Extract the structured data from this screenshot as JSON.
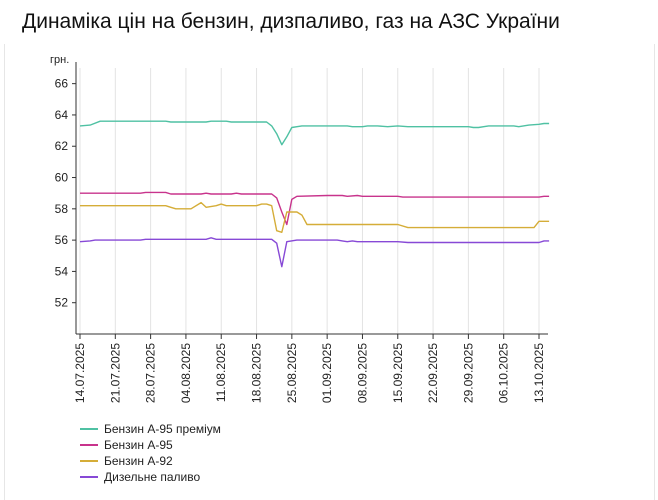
{
  "title": "Динаміка цін на бензин, дизпаливо, газ на АЗС України",
  "chart_data": {
    "type": "line",
    "ylabel": "грн.",
    "ylim": [
      50,
      67
    ],
    "yticks": [
      52,
      54,
      56,
      58,
      60,
      62,
      64,
      66
    ],
    "xticks": [
      "14.07.2025",
      "21.07.2025",
      "28.07.2025",
      "04.08.2025",
      "11.08.2025",
      "18.08.2025",
      "25.08.2025",
      "01.09.2025",
      "08.09.2025",
      "15.09.2025",
      "22.09.2025",
      "29.09.2025",
      "06.10.2025",
      "13.10.2025"
    ],
    "grid": "vertical",
    "legend_position": "bottom-left",
    "series": [
      {
        "name": "Бензин А-95 преміум",
        "color": "#4fc1a3",
        "points": [
          [
            "14.07.2025",
            63.3
          ],
          [
            "16.07.2025",
            63.35
          ],
          [
            "18.07.2025",
            63.6
          ],
          [
            "22.07.2025",
            63.6
          ],
          [
            "26.07.2025",
            63.6
          ],
          [
            "31.07.2025",
            63.6
          ],
          [
            "01.08.2025",
            63.55
          ],
          [
            "08.08.2025",
            63.55
          ],
          [
            "09.08.2025",
            63.6
          ],
          [
            "12.08.2025",
            63.6
          ],
          [
            "13.08.2025",
            63.55
          ],
          [
            "19.08.2025",
            63.55
          ],
          [
            "20.08.2025",
            63.55
          ],
          [
            "21.08.2025",
            63.3
          ],
          [
            "22.08.2025",
            62.8
          ],
          [
            "23.08.2025",
            62.1
          ],
          [
            "24.08.2025",
            62.6
          ],
          [
            "25.08.2025",
            63.2
          ],
          [
            "27.08.2025",
            63.3
          ],
          [
            "05.09.2025",
            63.3
          ],
          [
            "06.09.2025",
            63.25
          ],
          [
            "08.09.2025",
            63.25
          ],
          [
            "09.09.2025",
            63.3
          ],
          [
            "11.09.2025",
            63.3
          ],
          [
            "13.09.2025",
            63.25
          ],
          [
            "15.09.2025",
            63.3
          ],
          [
            "17.09.2025",
            63.25
          ],
          [
            "29.09.2025",
            63.25
          ],
          [
            "30.09.2025",
            63.2
          ],
          [
            "01.10.2025",
            63.2
          ],
          [
            "03.10.2025",
            63.3
          ],
          [
            "06.10.2025",
            63.3
          ],
          [
            "08.10.2025",
            63.3
          ],
          [
            "09.10.2025",
            63.25
          ],
          [
            "11.10.2025",
            63.35
          ],
          [
            "13.10.2025",
            63.4
          ],
          [
            "14.10.2025",
            63.45
          ],
          [
            "15.10.2025",
            63.45
          ]
        ]
      },
      {
        "name": "Бензин А-95",
        "color": "#c8338c",
        "points": [
          [
            "14.07.2025",
            59.0
          ],
          [
            "26.07.2025",
            59.0
          ],
          [
            "27.07.2025",
            59.05
          ],
          [
            "31.07.2025",
            59.05
          ],
          [
            "01.08.2025",
            58.95
          ],
          [
            "07.08.2025",
            58.95
          ],
          [
            "08.08.2025",
            59.0
          ],
          [
            "09.08.2025",
            58.95
          ],
          [
            "13.08.2025",
            58.95
          ],
          [
            "14.08.2025",
            59.0
          ],
          [
            "15.08.2025",
            58.95
          ],
          [
            "21.08.2025",
            58.95
          ],
          [
            "22.08.2025",
            58.7
          ],
          [
            "23.08.2025",
            57.8
          ],
          [
            "24.08.2025",
            57.0
          ],
          [
            "25.08.2025",
            58.6
          ],
          [
            "26.08.2025",
            58.8
          ],
          [
            "01.09.2025",
            58.85
          ],
          [
            "04.09.2025",
            58.85
          ],
          [
            "05.09.2025",
            58.8
          ],
          [
            "07.09.2025",
            58.85
          ],
          [
            "08.09.2025",
            58.8
          ],
          [
            "15.09.2025",
            58.8
          ],
          [
            "16.09.2025",
            58.75
          ],
          [
            "13.10.2025",
            58.75
          ],
          [
            "14.10.2025",
            58.8
          ],
          [
            "15.10.2025",
            58.8
          ]
        ]
      },
      {
        "name": "Бензин А-92",
        "color": "#d5ad38",
        "points": [
          [
            "14.07.2025",
            58.2
          ],
          [
            "28.07.2025",
            58.2
          ],
          [
            "31.07.2025",
            58.2
          ],
          [
            "01.08.2025",
            58.1
          ],
          [
            "02.08.2025",
            58.0
          ],
          [
            "05.08.2025",
            58.0
          ],
          [
            "07.08.2025",
            58.4
          ],
          [
            "08.08.2025",
            58.1
          ],
          [
            "10.08.2025",
            58.2
          ],
          [
            "11.08.2025",
            58.3
          ],
          [
            "12.08.2025",
            58.2
          ],
          [
            "18.08.2025",
            58.2
          ],
          [
            "19.08.2025",
            58.3
          ],
          [
            "20.08.2025",
            58.3
          ],
          [
            "21.08.2025",
            58.2
          ],
          [
            "22.08.2025",
            56.6
          ],
          [
            "23.08.2025",
            56.5
          ],
          [
            "24.08.2025",
            57.8
          ],
          [
            "26.08.2025",
            57.8
          ],
          [
            "27.08.2025",
            57.6
          ],
          [
            "28.08.2025",
            57.0
          ],
          [
            "15.09.2025",
            57.0
          ],
          [
            "17.09.2025",
            56.8
          ],
          [
            "12.10.2025",
            56.8
          ],
          [
            "13.10.2025",
            57.2
          ],
          [
            "15.10.2025",
            57.2
          ]
        ]
      },
      {
        "name": "Дизельне паливо",
        "color": "#8749d6",
        "points": [
          [
            "14.07.2025",
            55.9
          ],
          [
            "16.07.2025",
            55.95
          ],
          [
            "17.07.2025",
            56.0
          ],
          [
            "26.07.2025",
            56.0
          ],
          [
            "27.07.2025",
            56.05
          ],
          [
            "08.08.2025",
            56.05
          ],
          [
            "09.08.2025",
            56.15
          ],
          [
            "10.08.2025",
            56.05
          ],
          [
            "21.08.2025",
            56.05
          ],
          [
            "22.08.2025",
            55.8
          ],
          [
            "23.08.2025",
            54.3
          ],
          [
            "24.08.2025",
            55.9
          ],
          [
            "26.08.2025",
            56.0
          ],
          [
            "01.09.2025",
            56.0
          ],
          [
            "03.09.2025",
            56.0
          ],
          [
            "04.09.2025",
            55.95
          ],
          [
            "05.09.2025",
            55.9
          ],
          [
            "06.09.2025",
            55.95
          ],
          [
            "07.09.2025",
            55.9
          ],
          [
            "15.09.2025",
            55.9
          ],
          [
            "17.09.2025",
            55.85
          ],
          [
            "13.10.2025",
            55.85
          ],
          [
            "14.10.2025",
            55.95
          ],
          [
            "15.10.2025",
            55.95
          ]
        ]
      }
    ]
  }
}
